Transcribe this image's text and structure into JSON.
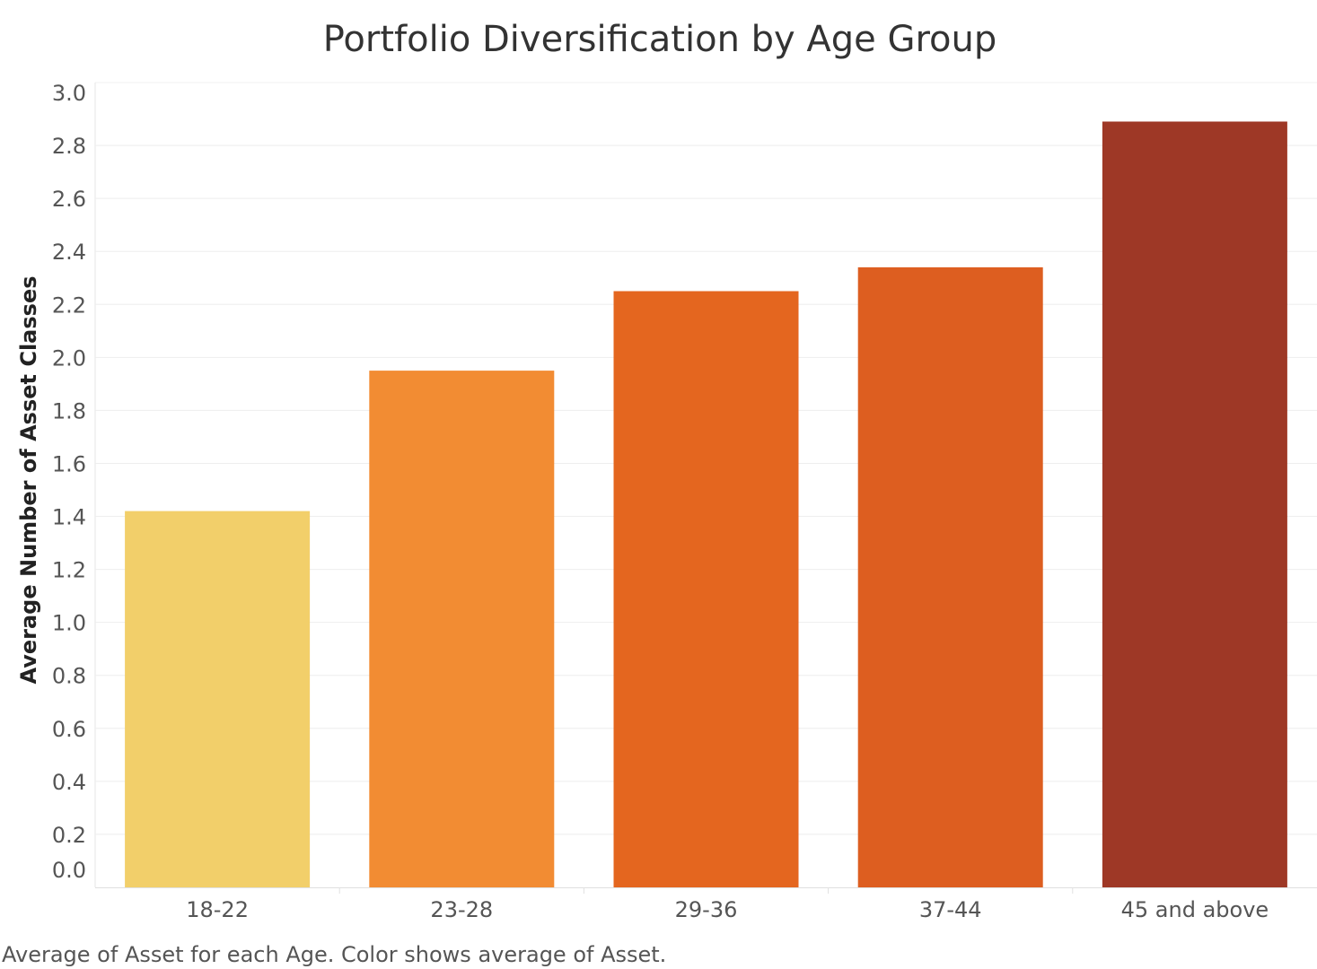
{
  "chart_data": {
    "type": "bar",
    "title": "Portfolio Diversification by Age Group",
    "xlabel": "",
    "ylabel": "Average Number of Asset Classes",
    "categories": [
      "18-22",
      "23-28",
      "29-36",
      "37-44",
      "45 and above"
    ],
    "values": [
      1.42,
      1.95,
      2.25,
      2.34,
      2.89
    ],
    "colors": [
      "#F2CF6A",
      "#F28C33",
      "#E4661F",
      "#DD5E20",
      "#9E3826"
    ],
    "ylim": [
      0,
      3
    ],
    "yticks": [
      "0.0",
      "0.2",
      "0.4",
      "0.6",
      "0.8",
      "1.0",
      "1.2",
      "1.4",
      "1.6",
      "1.8",
      "2.0",
      "2.2",
      "2.4",
      "2.6",
      "2.8",
      "3.0"
    ],
    "grid": true,
    "caption": "Average of Asset for each Age.  Color shows average of Asset."
  }
}
